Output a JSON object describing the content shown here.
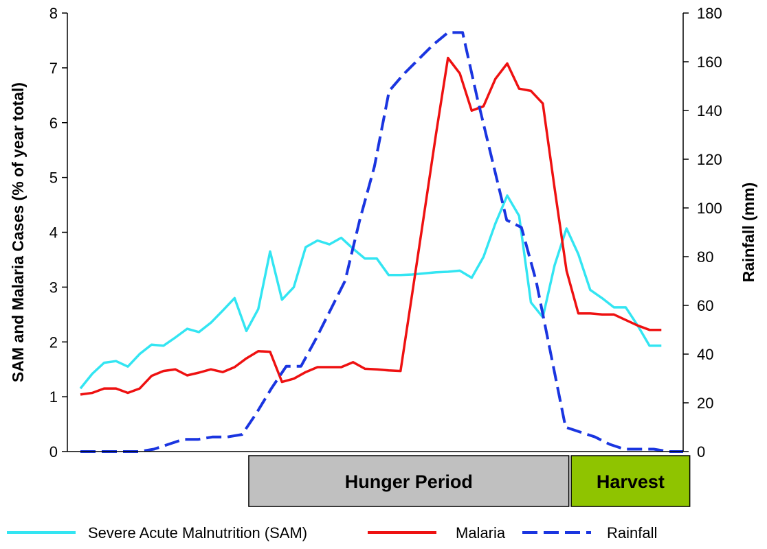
{
  "chart_data": {
    "type": "line",
    "title": "",
    "xlabel": "",
    "ylabel": "SAM and Malaria Cases (% of year total)",
    "y2label": "Rainfall (mm)",
    "ylim": [
      0,
      8
    ],
    "y2lim": [
      0,
      180
    ],
    "yticks": [
      "0",
      "1",
      "2",
      "3",
      "4",
      "5",
      "6",
      "7",
      "8"
    ],
    "y2ticks": [
      "0",
      "20",
      "40",
      "60",
      "80",
      "100",
      "120",
      "140",
      "160",
      "180"
    ],
    "x_count": 52,
    "grid": false,
    "legend_position": "bottom",
    "periods": [
      {
        "label": "Hunger Period",
        "start": 15.0,
        "end": 42.0,
        "color": "#c0c0c0"
      },
      {
        "label": "Harvest",
        "start": 42.2,
        "end": 52.2,
        "color": "#8fc400"
      }
    ],
    "series": [
      {
        "name": "Severe Acute Malnutrition (SAM)",
        "axis": "left",
        "color": "#33e5f2",
        "dash": "solid",
        "values": [
          1.15,
          1.42,
          1.62,
          1.65,
          1.55,
          1.78,
          1.95,
          1.93,
          2.08,
          2.24,
          2.18,
          2.35,
          2.57,
          2.8,
          2.2,
          2.6,
          3.65,
          2.77,
          3.0,
          3.73,
          3.85,
          3.78,
          3.9,
          3.7,
          3.52,
          3.52,
          3.22,
          3.22,
          3.23,
          3.25,
          3.27,
          3.28,
          3.3,
          3.17,
          3.55,
          4.16,
          4.67,
          4.3,
          2.72,
          2.45,
          3.4,
          4.07,
          3.6,
          2.95,
          2.8,
          2.63,
          2.63,
          2.3,
          1.93,
          1.93
        ]
      },
      {
        "name": "Malaria",
        "axis": "left",
        "color": "#ee1111",
        "dash": "solid",
        "values": [
          1.04,
          1.07,
          1.15,
          1.15,
          1.07,
          1.15,
          1.38,
          1.47,
          1.5,
          1.39,
          1.44,
          1.5,
          1.45,
          1.54,
          1.7,
          1.83,
          1.82,
          1.27,
          1.33,
          1.45,
          1.54,
          1.54,
          1.54,
          1.63,
          1.51,
          1.5,
          1.48,
          1.47,
          2.9,
          4.35,
          5.8,
          7.18,
          6.9,
          6.22,
          6.3,
          6.8,
          7.08,
          6.62,
          6.58,
          6.35,
          4.8,
          3.3,
          2.52,
          2.52,
          2.5,
          2.5,
          2.4,
          2.3,
          2.22,
          2.22
        ]
      },
      {
        "name": "Rainfall",
        "axis": "right",
        "color": "#1a35e0",
        "dash": "dashed",
        "values": [
          0,
          0,
          0,
          0,
          0,
          1,
          3,
          5,
          5,
          6,
          6,
          7,
          16,
          26,
          35,
          35,
          46,
          58,
          70,
          95,
          117,
          148,
          155,
          161,
          167,
          172,
          172,
          145,
          120,
          95,
          92,
          70,
          40,
          10,
          8,
          6,
          3,
          1,
          1,
          1,
          0,
          0
        ]
      }
    ]
  }
}
